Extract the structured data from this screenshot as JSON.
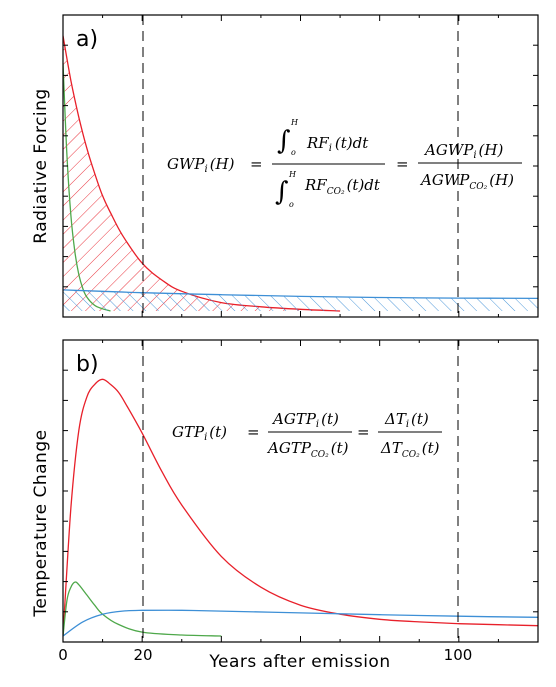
{
  "chart_data": [
    {
      "type": "line",
      "panel_label": "a)",
      "ylabel": "Radiative Forcing",
      "xlim": [
        0,
        120
      ],
      "ylim": [
        0,
        1
      ],
      "x_ticks": [
        0,
        20,
        100
      ],
      "vertical_markers": [
        20,
        100
      ],
      "equation": {
        "lhs": "GWP",
        "lhs_sub": "i",
        "lhs_arg": "(H)",
        "integrand_num": "RF",
        "integrand_num_sub": "i",
        "integrand_arg": "(t)dt",
        "integrand_den": "RF",
        "integrand_den_sub": "CO₂",
        "limit_upper": "H",
        "limit_lower": "o",
        "rhs_num": "AGWP",
        "rhs_num_sub": "i",
        "rhs_den": "AGWP",
        "rhs_den_sub": "CO₂",
        "rhs_arg": "(H)"
      },
      "series": [
        {
          "color": "#e8202a",
          "hatch": "diagonal-down",
          "values_desc": "exponential decay",
          "x": [
            0,
            2,
            4,
            6,
            8,
            10,
            12,
            15,
            20,
            25,
            30,
            40,
            50,
            60,
            70
          ],
          "y": [
            0.98,
            0.82,
            0.69,
            0.58,
            0.49,
            0.41,
            0.35,
            0.27,
            0.17,
            0.11,
            0.07,
            0.03,
            0.015,
            0.006,
            0.0
          ]
        },
        {
          "color": "#4ea84a",
          "hatch": "none",
          "x": [
            0,
            1,
            2,
            3,
            4,
            5,
            6,
            8,
            10,
            12
          ],
          "y": [
            0.88,
            0.55,
            0.34,
            0.21,
            0.13,
            0.08,
            0.05,
            0.02,
            0.008,
            0.0
          ]
        },
        {
          "color": "#3d8fd6",
          "hatch": "diagonal-up",
          "x": [
            0,
            10,
            20,
            40,
            60,
            80,
            100,
            120
          ],
          "y": [
            0.075,
            0.07,
            0.065,
            0.058,
            0.052,
            0.048,
            0.046,
            0.045
          ]
        }
      ]
    },
    {
      "type": "line",
      "panel_label": "b)",
      "ylabel": "Temperature Change",
      "xlabel": "Years after emission",
      "xlim": [
        0,
        120
      ],
      "ylim": [
        0,
        1
      ],
      "x_ticks": [
        0,
        20,
        100
      ],
      "vertical_markers": [
        20,
        100
      ],
      "equation": {
        "lhs": "GTP",
        "lhs_sub": "i",
        "lhs_arg": "(t)",
        "mid_num": "AGTP",
        "mid_num_sub": "i",
        "mid_num_arg": "(t)",
        "mid_den": "AGTP",
        "mid_den_sub": "CO₂",
        "mid_den_arg": "(t)",
        "rhs_num": "ΔT",
        "rhs_num_sub": "i",
        "rhs_num_arg": "(t)",
        "rhs_den": "ΔT",
        "rhs_den_sub": "CO₂",
        "rhs_den_arg": "(t)"
      },
      "series": [
        {
          "color": "#e8202a",
          "x": [
            0,
            2,
            4,
            6,
            8,
            10,
            12,
            14,
            16,
            20,
            25,
            30,
            40,
            50,
            60,
            70,
            80,
            90,
            100,
            110,
            120
          ],
          "y": [
            0.0,
            0.5,
            0.8,
            0.93,
            0.98,
            1.0,
            0.98,
            0.95,
            0.9,
            0.79,
            0.64,
            0.51,
            0.31,
            0.19,
            0.12,
            0.085,
            0.065,
            0.055,
            0.048,
            0.044,
            0.04
          ]
        },
        {
          "color": "#4ea84a",
          "x": [
            0,
            1,
            2,
            3,
            4,
            6,
            8,
            10,
            14,
            20,
            30,
            40
          ],
          "y": [
            0.0,
            0.14,
            0.19,
            0.21,
            0.2,
            0.16,
            0.12,
            0.085,
            0.045,
            0.015,
            0.004,
            0.0
          ]
        },
        {
          "color": "#3d8fd6",
          "x": [
            0,
            5,
            10,
            15,
            20,
            30,
            40,
            60,
            80,
            100,
            120
          ],
          "y": [
            0.0,
            0.055,
            0.085,
            0.097,
            0.1,
            0.1,
            0.097,
            0.09,
            0.083,
            0.077,
            0.073
          ]
        }
      ]
    }
  ],
  "xlabel": "Years after emission",
  "tick_labels": [
    "0",
    "20",
    "100"
  ]
}
